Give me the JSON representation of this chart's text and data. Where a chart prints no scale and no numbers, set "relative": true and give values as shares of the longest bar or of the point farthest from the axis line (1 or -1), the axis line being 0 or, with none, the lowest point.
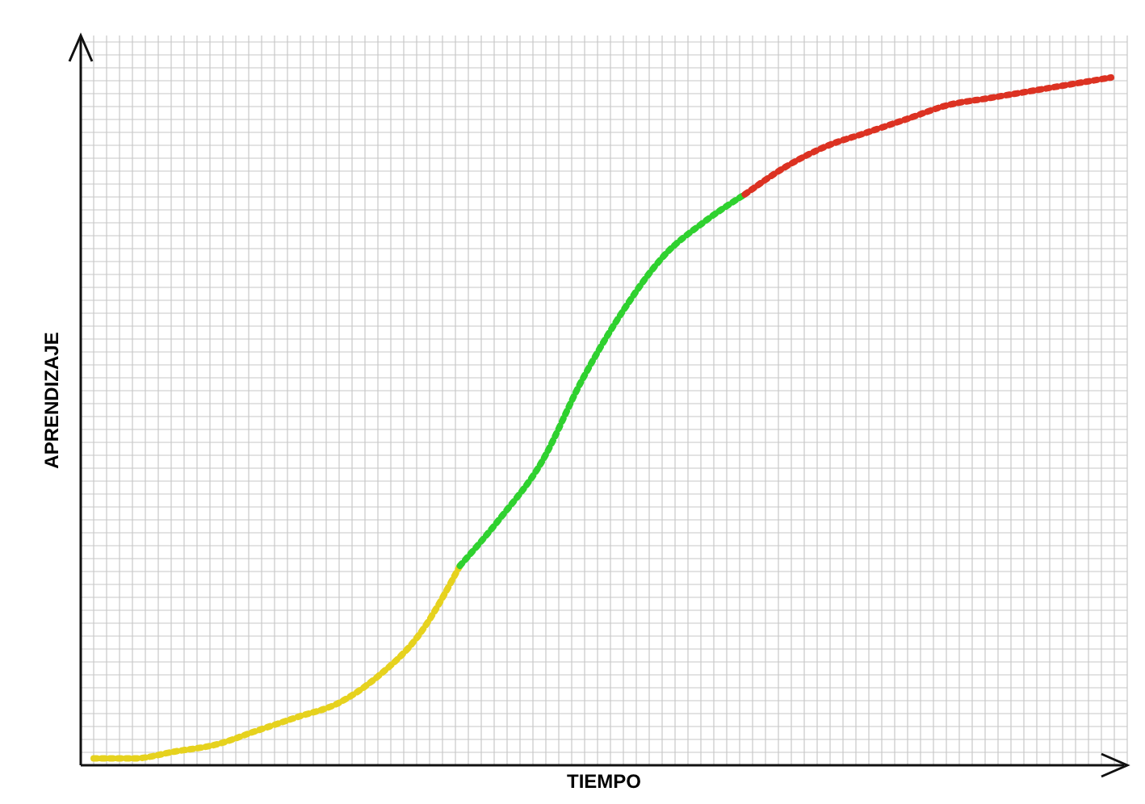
{
  "chart_data": {
    "type": "line",
    "relative": true,
    "xlabel": "TIEMPO",
    "ylabel": "APRENDIZAJE",
    "grid": true,
    "line_style": "dotted",
    "marker": "none",
    "categories": [
      null,
      null,
      null,
      null,
      null,
      null,
      null,
      null,
      null,
      null,
      null,
      null,
      null,
      null,
      null,
      null,
      null,
      null,
      null,
      null,
      null,
      null,
      null,
      null,
      null,
      null
    ],
    "series": [
      {
        "color": "#e6d21e",
        "values": [
          0.01,
          0.01,
          0.02,
          0.03,
          0.05,
          0.07,
          0.09,
          0.13,
          0.19,
          0.29,
          null,
          null,
          null,
          null,
          null,
          null,
          null,
          null,
          null,
          null,
          null,
          null,
          null,
          null,
          null,
          null
        ]
      },
      {
        "color": "#2fd12f",
        "values": [
          null,
          null,
          null,
          null,
          null,
          null,
          null,
          null,
          null,
          0.29,
          0.36,
          0.44,
          0.56,
          0.66,
          0.74,
          0.79,
          0.83,
          null,
          null,
          null,
          null,
          null,
          null,
          null,
          null,
          null
        ]
      },
      {
        "color": "#dc3222",
        "values": [
          null,
          null,
          null,
          null,
          null,
          null,
          null,
          null,
          null,
          null,
          null,
          null,
          null,
          null,
          null,
          null,
          0.83,
          0.87,
          0.9,
          0.92,
          0.94,
          0.96,
          0.97,
          0.98,
          0.99,
          1
        ]
      }
    ]
  }
}
